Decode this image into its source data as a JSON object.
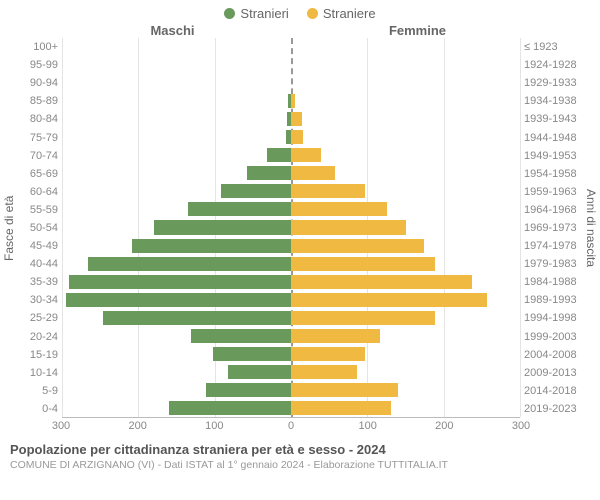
{
  "legend": [
    {
      "label": "Stranieri",
      "color": "#6a9a5b"
    },
    {
      "label": "Straniere",
      "color": "#f0b941"
    }
  ],
  "headers": {
    "left": "Maschi",
    "right": "Femmine"
  },
  "axis_labels": {
    "left": "Fasce di età",
    "right": "Anni di nascita"
  },
  "chart": {
    "type": "population-pyramid",
    "max_value": 310,
    "x_ticks": [
      300,
      200,
      100,
      0,
      100,
      200,
      300
    ],
    "male_color": "#6a9a5b",
    "female_color": "#f0b941",
    "grid_color": "#e4e4e4",
    "center_line_color": "#999999",
    "background_color": "#ffffff",
    "tick_fontsize": 11,
    "label_fontsize": 11,
    "rows": [
      {
        "age": "100+",
        "birth": "≤ 1923",
        "m": 0,
        "f": 0
      },
      {
        "age": "95-99",
        "birth": "1924-1928",
        "m": 0,
        "f": 0
      },
      {
        "age": "90-94",
        "birth": "1929-1933",
        "m": 0,
        "f": 0
      },
      {
        "age": "85-89",
        "birth": "1934-1938",
        "m": 4,
        "f": 6
      },
      {
        "age": "80-84",
        "birth": "1939-1943",
        "m": 5,
        "f": 15
      },
      {
        "age": "75-79",
        "birth": "1944-1948",
        "m": 7,
        "f": 16
      },
      {
        "age": "70-74",
        "birth": "1949-1953",
        "m": 32,
        "f": 40
      },
      {
        "age": "65-69",
        "birth": "1954-1958",
        "m": 60,
        "f": 60
      },
      {
        "age": "60-64",
        "birth": "1959-1963",
        "m": 95,
        "f": 100
      },
      {
        "age": "55-59",
        "birth": "1964-1968",
        "m": 140,
        "f": 130
      },
      {
        "age": "50-54",
        "birth": "1969-1973",
        "m": 185,
        "f": 155
      },
      {
        "age": "45-49",
        "birth": "1974-1978",
        "m": 215,
        "f": 180
      },
      {
        "age": "40-44",
        "birth": "1979-1983",
        "m": 275,
        "f": 195
      },
      {
        "age": "35-39",
        "birth": "1984-1988",
        "m": 300,
        "f": 245
      },
      {
        "age": "30-34",
        "birth": "1989-1993",
        "m": 305,
        "f": 265
      },
      {
        "age": "25-29",
        "birth": "1994-1998",
        "m": 255,
        "f": 195
      },
      {
        "age": "20-24",
        "birth": "1999-2003",
        "m": 135,
        "f": 120
      },
      {
        "age": "15-19",
        "birth": "2004-2008",
        "m": 105,
        "f": 100
      },
      {
        "age": "10-14",
        "birth": "2009-2013",
        "m": 85,
        "f": 90
      },
      {
        "age": "5-9",
        "birth": "2014-2018",
        "m": 115,
        "f": 145
      },
      {
        "age": "0-4",
        "birth": "2019-2023",
        "m": 165,
        "f": 135
      }
    ]
  },
  "footer": {
    "title": "Popolazione per cittadinanza straniera per età e sesso - 2024",
    "subtitle": "COMUNE DI ARZIGNANO (VI) - Dati ISTAT al 1° gennaio 2024 - Elaborazione TUTTITALIA.IT"
  }
}
